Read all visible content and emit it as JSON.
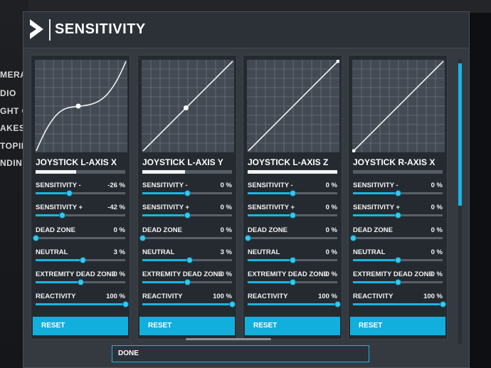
{
  "background_menu": {
    "items": [
      {
        "label": "MERA"
      },
      {
        "label": "DIO"
      },
      {
        "label": "GHT C"
      },
      {
        "label": "AKES"
      },
      {
        "label": "TOPIL"
      },
      {
        "label": "NDING"
      }
    ]
  },
  "window": {
    "title": "SENSITIVITY",
    "back_icon": "chevron-right-icon",
    "done_label": "DONE"
  },
  "colors": {
    "accent": "#19b6e0",
    "panel": "#252a31",
    "graph_bg": "#434a53"
  },
  "axes": [
    {
      "name": "JOYSTICK L-AXIS X",
      "input_level": 0.45,
      "curve": "s-curve",
      "reset_label": "RESET",
      "params": [
        {
          "label": "SENSITIVITY -",
          "value": "-26 %",
          "level": 0.37
        },
        {
          "label": "SENSITIVITY +",
          "value": "-42 %",
          "level": 0.29
        },
        {
          "label": "DEAD ZONE",
          "value": "0 %",
          "level": 0.0
        },
        {
          "label": "NEUTRAL",
          "value": "3 %",
          "level": 0.52
        },
        {
          "label": "EXTREMITY DEAD ZONE",
          "value": "0 %",
          "level": 0.5
        },
        {
          "label": "REACTIVITY",
          "value": "100 %",
          "level": 1.0
        }
      ]
    },
    {
      "name": "JOYSTICK L-AXIS Y",
      "input_level": 0.48,
      "curve": "linear",
      "reset_label": "RESET",
      "params": [
        {
          "label": "SENSITIVITY -",
          "value": "0 %",
          "level": 0.5
        },
        {
          "label": "SENSITIVITY +",
          "value": "0 %",
          "level": 0.5
        },
        {
          "label": "DEAD ZONE",
          "value": "0 %",
          "level": 0.0
        },
        {
          "label": "NEUTRAL",
          "value": "3 %",
          "level": 0.52
        },
        {
          "label": "EXTREMITY DEAD ZONE",
          "value": "0 %",
          "level": 0.5
        },
        {
          "label": "REACTIVITY",
          "value": "100 %",
          "level": 1.0
        }
      ]
    },
    {
      "name": "JOYSTICK L-AXIS Z",
      "input_level": 1.0,
      "curve": "linear",
      "reset_label": "RESET",
      "params": [
        {
          "label": "SENSITIVITY -",
          "value": "0 %",
          "level": 0.5
        },
        {
          "label": "SENSITIVITY +",
          "value": "0 %",
          "level": 0.5
        },
        {
          "label": "DEAD ZONE",
          "value": "0 %",
          "level": 0.0
        },
        {
          "label": "NEUTRAL",
          "value": "0 %",
          "level": 0.5
        },
        {
          "label": "EXTREMITY DEAD ZONE",
          "value": "0 %",
          "level": 0.5
        },
        {
          "label": "REACTIVITY",
          "value": "100 %",
          "level": 1.0
        }
      ]
    },
    {
      "name": "JOYSTICK R-AXIS X",
      "input_level": 0.0,
      "curve": "linear",
      "reset_label": "RESET",
      "params": [
        {
          "label": "SENSITIVITY -",
          "value": "0 %",
          "level": 0.5
        },
        {
          "label": "SENSITIVITY +",
          "value": "0 %",
          "level": 0.5
        },
        {
          "label": "DEAD ZONE",
          "value": "0 %",
          "level": 0.0
        },
        {
          "label": "NEUTRAL",
          "value": "0 %",
          "level": 0.5
        },
        {
          "label": "EXTREMITY DEAD ZONE",
          "value": "0 %",
          "level": 0.5
        },
        {
          "label": "REACTIVITY",
          "value": "100 %",
          "level": 1.0
        }
      ]
    }
  ]
}
